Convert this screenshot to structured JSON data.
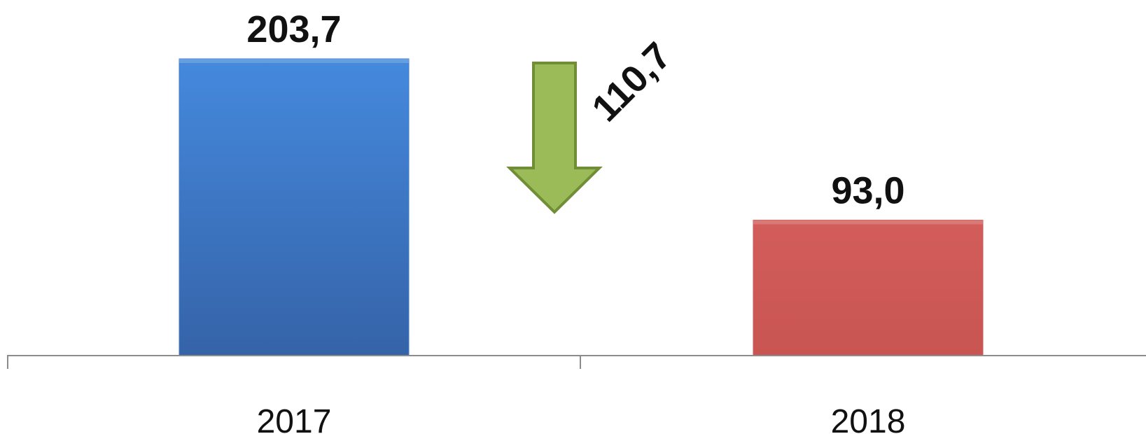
{
  "chart_data": {
    "type": "bar",
    "categories": [
      "2017",
      "2018"
    ],
    "values": [
      203.7,
      93.0
    ],
    "value_labels": [
      "203,7",
      "93,0"
    ],
    "bar_colors": [
      "#3f7fd1",
      "#cd5856"
    ],
    "change": {
      "value": 110.7,
      "label": "110,7",
      "direction": "down",
      "color": "#9bbb59",
      "border_color": "#6f8e35"
    },
    "axis_color": "#8c8c8c",
    "grid": false,
    "legend": "none"
  }
}
